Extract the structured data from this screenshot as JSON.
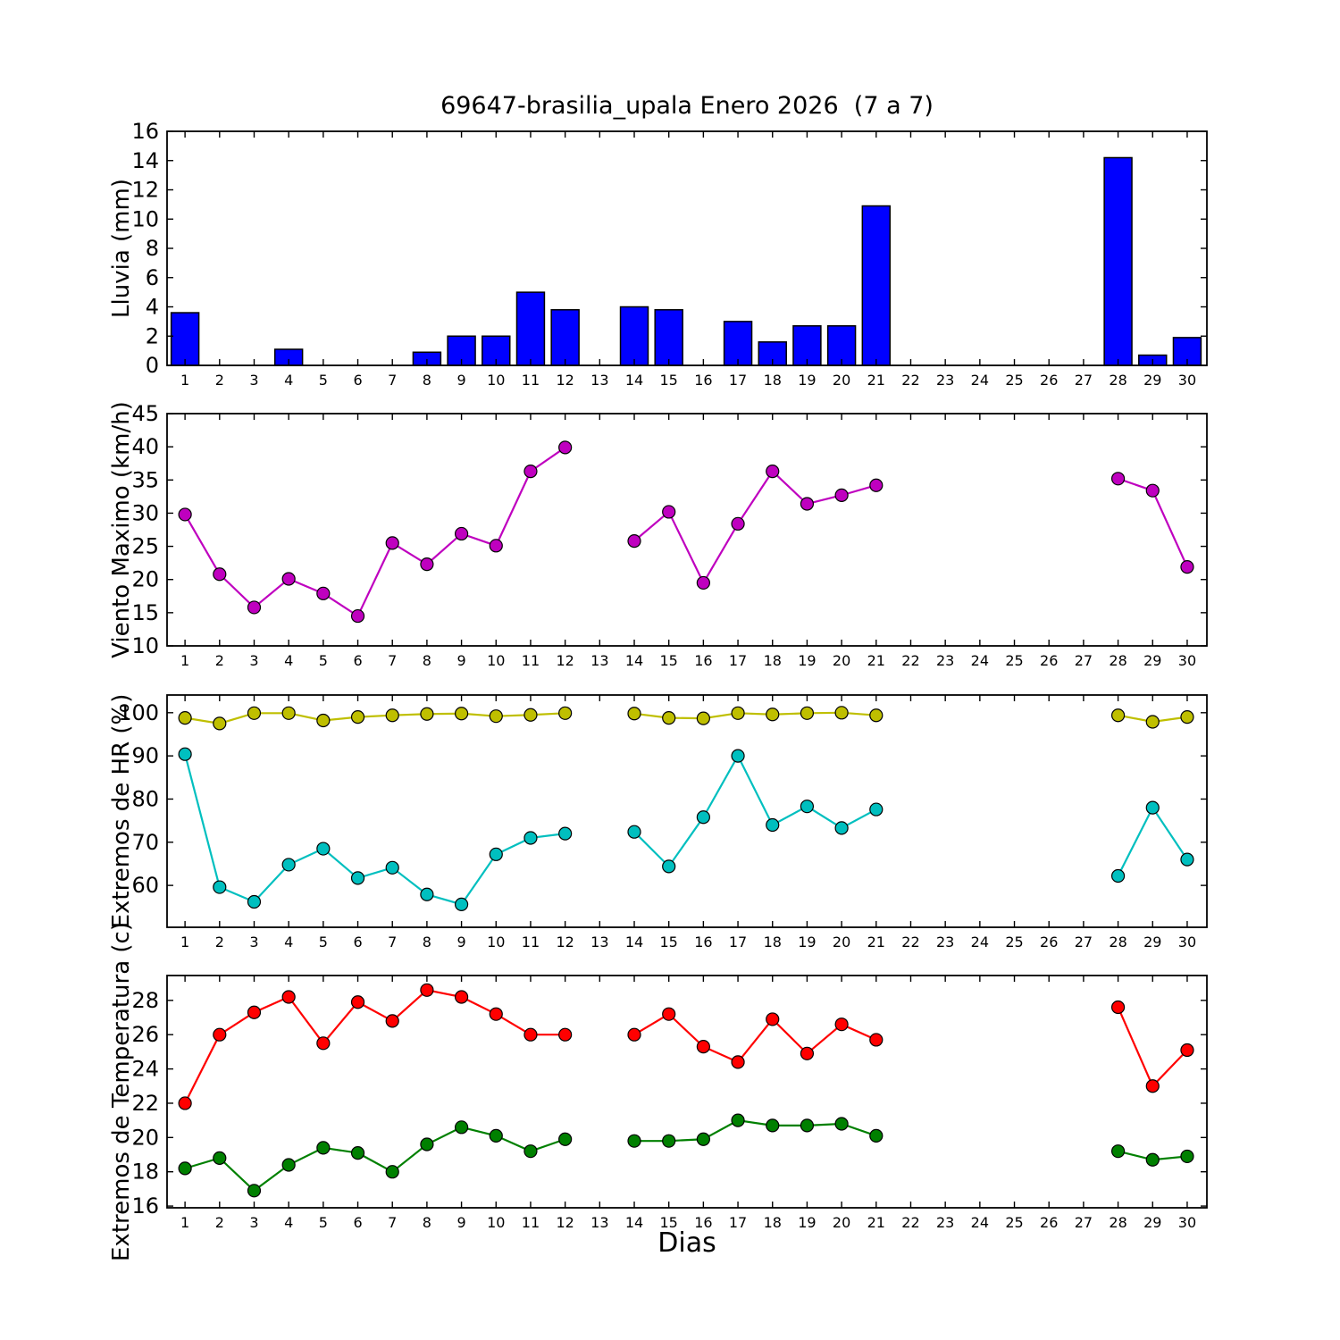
{
  "figure": {
    "title": "69647-brasilia_upala Enero 2026  (7 a 7)",
    "xlabel": "Dias"
  },
  "chart_data": [
    {
      "type": "bar",
      "name": "lluvia",
      "ylabel": "Lluvia (mm)",
      "ylim": [
        0,
        16
      ],
      "yticks": [
        0,
        2,
        4,
        6,
        8,
        10,
        12,
        14,
        16
      ],
      "bar_color": "#0000ff",
      "bar_edge_color": "#000000",
      "categories": [
        1,
        2,
        3,
        4,
        5,
        6,
        7,
        8,
        9,
        10,
        11,
        12,
        13,
        14,
        15,
        16,
        17,
        18,
        19,
        20,
        21,
        22,
        23,
        24,
        25,
        26,
        27,
        28,
        29,
        30
      ],
      "values": [
        3.6,
        0,
        0,
        1.1,
        0,
        0,
        0,
        0.9,
        2.0,
        2.0,
        5.0,
        3.8,
        0,
        4.0,
        3.8,
        0,
        3.0,
        1.6,
        2.7,
        2.7,
        10.9,
        0,
        0,
        0,
        0,
        0,
        0,
        14.2,
        0.7,
        1.9
      ]
    },
    {
      "type": "line",
      "name": "viento-maximo",
      "ylabel": "Viento Maximo (km/h)",
      "ylim": [
        10,
        45
      ],
      "yticks": [
        10,
        15,
        20,
        25,
        30,
        35,
        40,
        45
      ],
      "categories": [
        1,
        2,
        3,
        4,
        5,
        6,
        7,
        8,
        9,
        10,
        11,
        12,
        13,
        14,
        15,
        16,
        17,
        18,
        19,
        20,
        21,
        22,
        23,
        24,
        25,
        26,
        27,
        28,
        29,
        30
      ],
      "series": [
        {
          "name": "viento_maximo",
          "color": "#bf00bf",
          "values": [
            29.8,
            20.8,
            15.8,
            20.1,
            17.9,
            14.5,
            25.5,
            22.3,
            26.9,
            25.1,
            36.3,
            39.9,
            null,
            25.8,
            30.2,
            19.5,
            28.4,
            36.3,
            31.4,
            32.7,
            34.2,
            null,
            null,
            null,
            null,
            null,
            null,
            35.2,
            33.4,
            21.9
          ]
        }
      ]
    },
    {
      "type": "line",
      "name": "extremos-hr",
      "ylabel": "Extremos de HR (%)",
      "ylim": [
        50.3,
        104.1
      ],
      "yticks": [
        60,
        70,
        80,
        90,
        100
      ],
      "categories": [
        1,
        2,
        3,
        4,
        5,
        6,
        7,
        8,
        9,
        10,
        11,
        12,
        13,
        14,
        15,
        16,
        17,
        18,
        19,
        20,
        21,
        22,
        23,
        24,
        25,
        26,
        27,
        28,
        29,
        30
      ],
      "series": [
        {
          "name": "hr_max",
          "color": "#bfbf00",
          "values": [
            98.8,
            97.5,
            99.9,
            99.9,
            98.2,
            99.0,
            99.4,
            99.7,
            99.8,
            99.2,
            99.5,
            99.9,
            null,
            99.8,
            98.8,
            98.7,
            99.9,
            99.6,
            99.9,
            100.0,
            99.4,
            null,
            null,
            null,
            null,
            null,
            null,
            99.4,
            97.9,
            99.0
          ]
        },
        {
          "name": "hr_min",
          "color": "#00bfbf",
          "values": [
            90.4,
            59.6,
            56.2,
            64.8,
            68.5,
            61.7,
            64.1,
            57.9,
            55.6,
            67.2,
            71.0,
            72.0,
            null,
            72.4,
            64.4,
            75.8,
            90.0,
            74.0,
            78.3,
            73.3,
            77.6,
            null,
            null,
            null,
            null,
            null,
            null,
            62.2,
            78.0,
            66.0
          ]
        }
      ]
    },
    {
      "type": "line",
      "name": "extremos-temperatura",
      "ylabel": "Extremos de Temperatura (c)",
      "ylim": [
        15.9,
        29.45
      ],
      "yticks": [
        16,
        18,
        20,
        22,
        24,
        26,
        28
      ],
      "categories": [
        1,
        2,
        3,
        4,
        5,
        6,
        7,
        8,
        9,
        10,
        11,
        12,
        13,
        14,
        15,
        16,
        17,
        18,
        19,
        20,
        21,
        22,
        23,
        24,
        25,
        26,
        27,
        28,
        29,
        30
      ],
      "series": [
        {
          "name": "temp_max",
          "color": "#ff0000",
          "values": [
            22.0,
            26.0,
            27.3,
            28.2,
            25.5,
            27.9,
            26.8,
            28.6,
            28.2,
            27.2,
            26.0,
            26.0,
            null,
            26.0,
            27.2,
            25.3,
            24.4,
            26.9,
            24.9,
            26.6,
            25.7,
            null,
            null,
            null,
            null,
            null,
            null,
            27.6,
            23.0,
            25.1
          ]
        },
        {
          "name": "temp_min",
          "color": "#008000",
          "values": [
            18.2,
            18.8,
            16.9,
            18.4,
            19.4,
            19.1,
            18.0,
            19.6,
            20.6,
            20.1,
            19.2,
            19.9,
            null,
            19.8,
            19.8,
            19.9,
            21.0,
            20.7,
            20.7,
            20.8,
            20.1,
            null,
            null,
            null,
            null,
            null,
            null,
            19.2,
            18.7,
            18.9
          ]
        }
      ]
    }
  ]
}
